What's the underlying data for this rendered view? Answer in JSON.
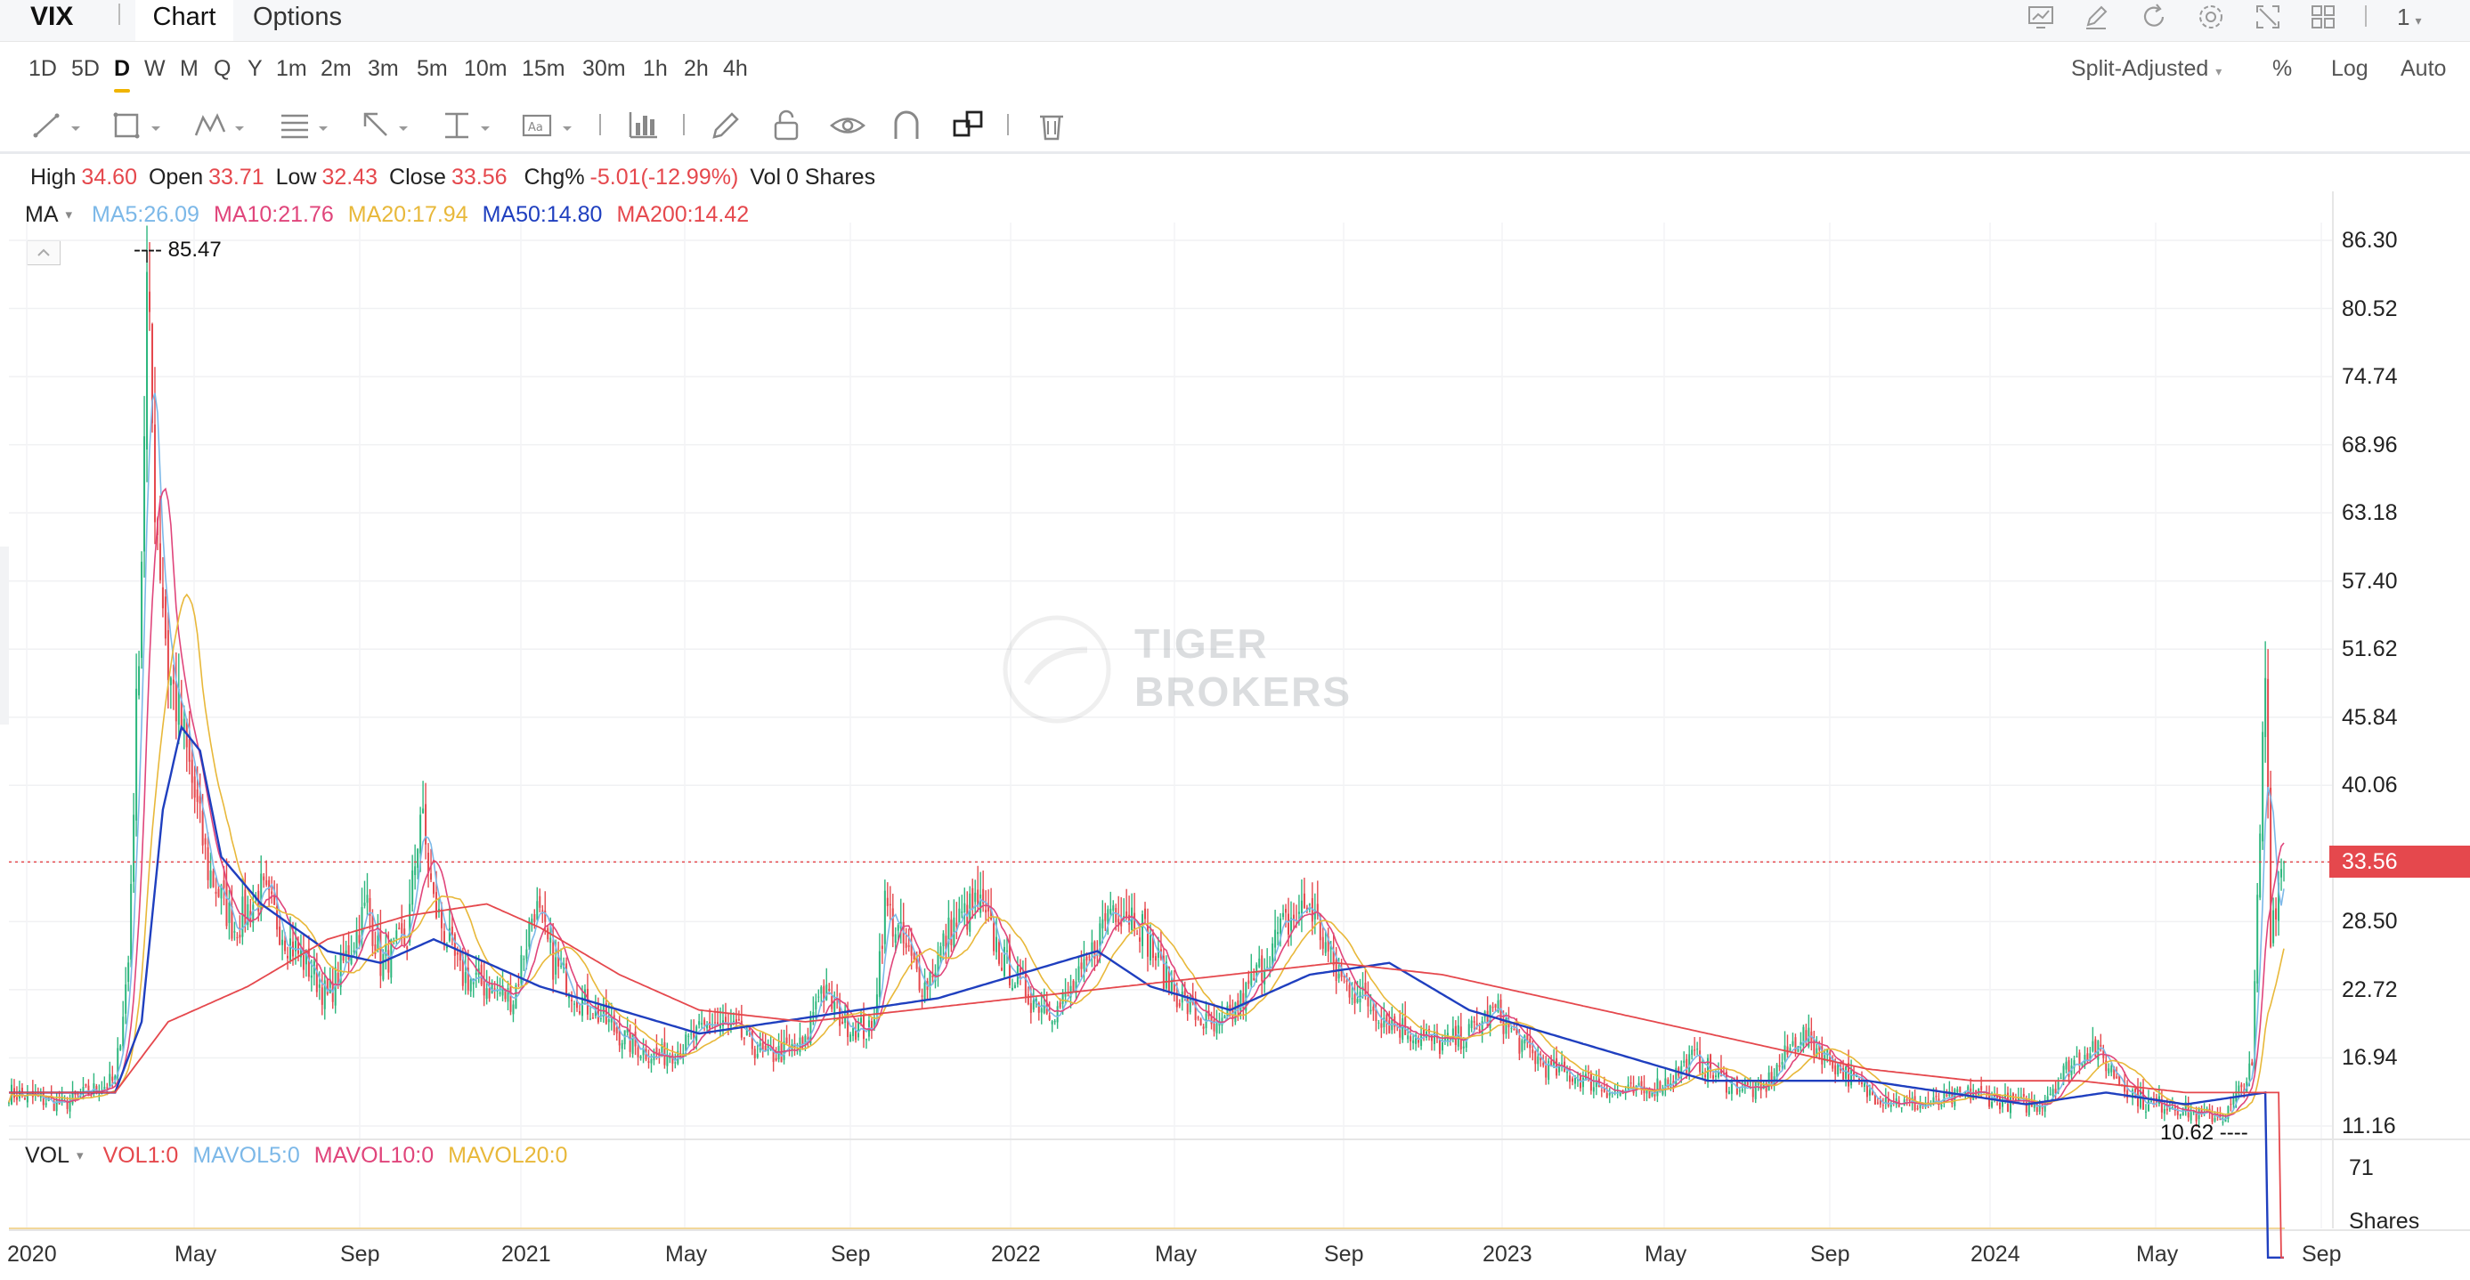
{
  "header": {
    "symbol": "VIX",
    "tabs": [
      {
        "label": "Chart"
      },
      {
        "label": "Options"
      }
    ],
    "icons": [
      "indicator-icon",
      "draw-icon",
      "refresh-icon",
      "settings-icon",
      "fullscreen-icon",
      "layout-grid-icon"
    ],
    "layout_count": "1"
  },
  "intervals": [
    "1D",
    "5D",
    "D",
    "W",
    "M",
    "Q",
    "Y",
    "1m",
    "2m",
    "3m",
    "5m",
    "10m",
    "15m",
    "30m",
    "1h",
    "2h",
    "4h"
  ],
  "active_interval": "D",
  "chart_options": {
    "adjust": "Split-Adjusted",
    "percent": "%",
    "log": "Log",
    "auto": "Auto"
  },
  "draw_tools": [
    "trend-line-icon",
    "rectangle-icon",
    "pattern-icon",
    "fib-icon",
    "arrow-icon",
    "measure-icon",
    "text-icon",
    "bar-stats-icon",
    "pencil-icon",
    "lock-icon",
    "eye-icon",
    "magnet-icon",
    "link-icon",
    "trash-icon"
  ],
  "ohlc": {
    "high_label": "High",
    "high": "34.60",
    "open_label": "Open",
    "open": "33.71",
    "low_label": "Low",
    "low": "32.43",
    "close_label": "Close",
    "close": "33.56",
    "chg_label": "Chg%",
    "chg": "-5.01(-12.99%)",
    "vol_label": "Vol",
    "vol": "0 Shares"
  },
  "ma": {
    "label": "MA",
    "items": [
      {
        "text": "MA5:26.09",
        "color": "#7cb8e8"
      },
      {
        "text": "MA10:21.76",
        "color": "#e0457b"
      },
      {
        "text": "MA20:17.94",
        "color": "#e8b83a"
      },
      {
        "text": "MA50:14.80",
        "color": "#1f3fbf"
      },
      {
        "text": "MA200:14.42",
        "color": "#e5484d"
      }
    ]
  },
  "vol_indicator": {
    "label": "VOL",
    "items": [
      {
        "text": "VOL1:0",
        "color": "#e5484d"
      },
      {
        "text": "MAVOL5:0",
        "color": "#7cb8e8"
      },
      {
        "text": "MAVOL10:0",
        "color": "#e0457b"
      },
      {
        "text": "MAVOL20:0",
        "color": "#e8b83a"
      }
    ],
    "axis_value": "71",
    "axis_unit": "Shares"
  },
  "watermark": {
    "line1": "TIGER",
    "line2": "BROKERS"
  },
  "chart_data": {
    "type": "candlestick",
    "y_axis_ticks": [
      "86.30",
      "80.52",
      "74.74",
      "68.96",
      "63.18",
      "57.40",
      "51.62",
      "45.84",
      "40.06",
      "33.56",
      "28.50",
      "22.72",
      "16.94",
      "11.16"
    ],
    "x_axis_ticks": [
      "2020",
      "May",
      "Sep",
      "2021",
      "May",
      "Sep",
      "2022",
      "May",
      "Sep",
      "2023",
      "May",
      "Sep",
      "2024",
      "May",
      "Sep"
    ],
    "ylim": [
      11.16,
      86.3
    ],
    "last_price": "33.56",
    "period_high": "85.47",
    "period_low": "10.62",
    "colors": {
      "up": "#2cb67d",
      "down": "#e5484d"
    },
    "approx_close_path": [
      [
        0,
        14
      ],
      [
        20,
        13
      ],
      [
        40,
        15
      ],
      [
        45,
        25
      ],
      [
        50,
        60
      ],
      [
        52,
        82
      ],
      [
        55,
        65
      ],
      [
        60,
        50
      ],
      [
        65,
        45
      ],
      [
        75,
        33
      ],
      [
        85,
        28
      ],
      [
        95,
        31
      ],
      [
        105,
        27
      ],
      [
        115,
        24
      ],
      [
        120,
        22
      ],
      [
        130,
        27
      ],
      [
        135,
        30
      ],
      [
        140,
        25
      ],
      [
        150,
        27
      ],
      [
        155,
        38
      ],
      [
        160,
        30
      ],
      [
        170,
        24
      ],
      [
        180,
        23
      ],
      [
        190,
        22
      ],
      [
        198,
        30
      ],
      [
        205,
        25
      ],
      [
        215,
        22
      ],
      [
        225,
        20
      ],
      [
        235,
        18
      ],
      [
        245,
        17
      ],
      [
        255,
        18
      ],
      [
        265,
        20
      ],
      [
        275,
        19
      ],
      [
        285,
        17
      ],
      [
        300,
        18
      ],
      [
        305,
        23
      ],
      [
        315,
        20
      ],
      [
        325,
        19
      ],
      [
        330,
        30
      ],
      [
        340,
        25
      ],
      [
        345,
        23
      ],
      [
        355,
        28
      ],
      [
        365,
        30
      ],
      [
        375,
        25
      ],
      [
        385,
        22
      ],
      [
        395,
        21
      ],
      [
        405,
        24
      ],
      [
        415,
        30
      ],
      [
        425,
        29
      ],
      [
        435,
        24
      ],
      [
        445,
        21
      ],
      [
        455,
        19
      ],
      [
        465,
        22
      ],
      [
        480,
        28
      ],
      [
        490,
        30
      ],
      [
        500,
        24
      ],
      [
        510,
        22
      ],
      [
        520,
        20
      ],
      [
        530,
        19
      ],
      [
        540,
        18
      ],
      [
        550,
        19
      ],
      [
        560,
        21
      ],
      [
        570,
        18
      ],
      [
        580,
        16
      ],
      [
        595,
        15
      ],
      [
        605,
        14
      ],
      [
        615,
        14
      ],
      [
        625,
        15
      ],
      [
        635,
        17
      ],
      [
        645,
        15
      ],
      [
        660,
        14
      ],
      [
        675,
        19
      ],
      [
        690,
        16
      ],
      [
        700,
        14
      ],
      [
        715,
        13
      ],
      [
        725,
        13
      ],
      [
        740,
        14
      ],
      [
        755,
        13
      ],
      [
        765,
        13
      ],
      [
        775,
        16
      ],
      [
        785,
        18
      ],
      [
        795,
        15
      ],
      [
        805,
        13
      ],
      [
        815,
        13
      ],
      [
        825,
        12
      ],
      [
        835,
        12
      ],
      [
        845,
        16
      ],
      [
        850,
        50
      ],
      [
        852,
        28
      ],
      [
        856,
        33
      ]
    ],
    "ma50_path": [
      [
        0,
        14
      ],
      [
        40,
        14
      ],
      [
        50,
        20
      ],
      [
        58,
        38
      ],
      [
        65,
        45
      ],
      [
        72,
        43
      ],
      [
        80,
        34
      ],
      [
        95,
        30
      ],
      [
        120,
        26
      ],
      [
        140,
        25
      ],
      [
        160,
        27
      ],
      [
        180,
        25
      ],
      [
        200,
        23
      ],
      [
        230,
        21
      ],
      [
        260,
        19
      ],
      [
        290,
        20
      ],
      [
        320,
        21
      ],
      [
        350,
        22
      ],
      [
        380,
        24
      ],
      [
        410,
        26
      ],
      [
        430,
        23
      ],
      [
        460,
        21
      ],
      [
        490,
        24
      ],
      [
        520,
        25
      ],
      [
        550,
        21
      ],
      [
        580,
        19
      ],
      [
        610,
        17
      ],
      [
        640,
        15
      ],
      [
        660,
        15
      ],
      [
        700,
        15
      ],
      [
        730,
        14
      ],
      [
        760,
        13
      ],
      [
        790,
        14
      ],
      [
        820,
        13
      ],
      [
        850,
        14
      ]
    ],
    "ma200_path": [
      [
        0,
        14
      ],
      [
        40,
        14
      ],
      [
        60,
        20
      ],
      [
        90,
        23
      ],
      [
        120,
        27
      ],
      [
        150,
        29
      ],
      [
        180,
        30
      ],
      [
        200,
        28
      ],
      [
        230,
        24
      ],
      [
        260,
        21
      ],
      [
        300,
        20
      ],
      [
        340,
        21
      ],
      [
        380,
        22
      ],
      [
        420,
        23
      ],
      [
        460,
        24
      ],
      [
        500,
        25
      ],
      [
        540,
        24
      ],
      [
        580,
        22
      ],
      [
        620,
        20
      ],
      [
        660,
        18
      ],
      [
        700,
        16
      ],
      [
        740,
        15
      ],
      [
        780,
        15
      ],
      [
        820,
        14
      ],
      [
        855,
        14
      ]
    ]
  }
}
